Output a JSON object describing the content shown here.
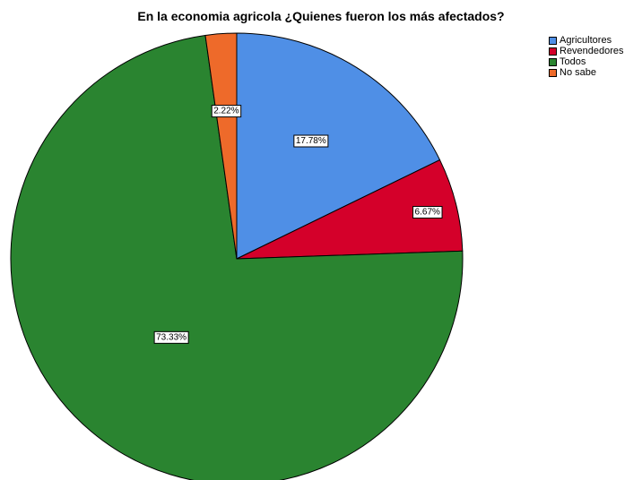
{
  "chart_data": {
    "type": "pie",
    "title": "En la economia agricola ¿Quienes fueron los más afectados?",
    "categories": [
      "Agricultores",
      "Revendedores",
      "Todos",
      "No sabe"
    ],
    "values": [
      17.78,
      6.67,
      73.33,
      2.22
    ],
    "labels": [
      "17.78%",
      "6.67%",
      "73.33%",
      "2.22%"
    ],
    "colors": [
      "#4f8fe6",
      "#d4002a",
      "#2a8430",
      "#ee6a2a"
    ],
    "legend_position": "top-right"
  }
}
